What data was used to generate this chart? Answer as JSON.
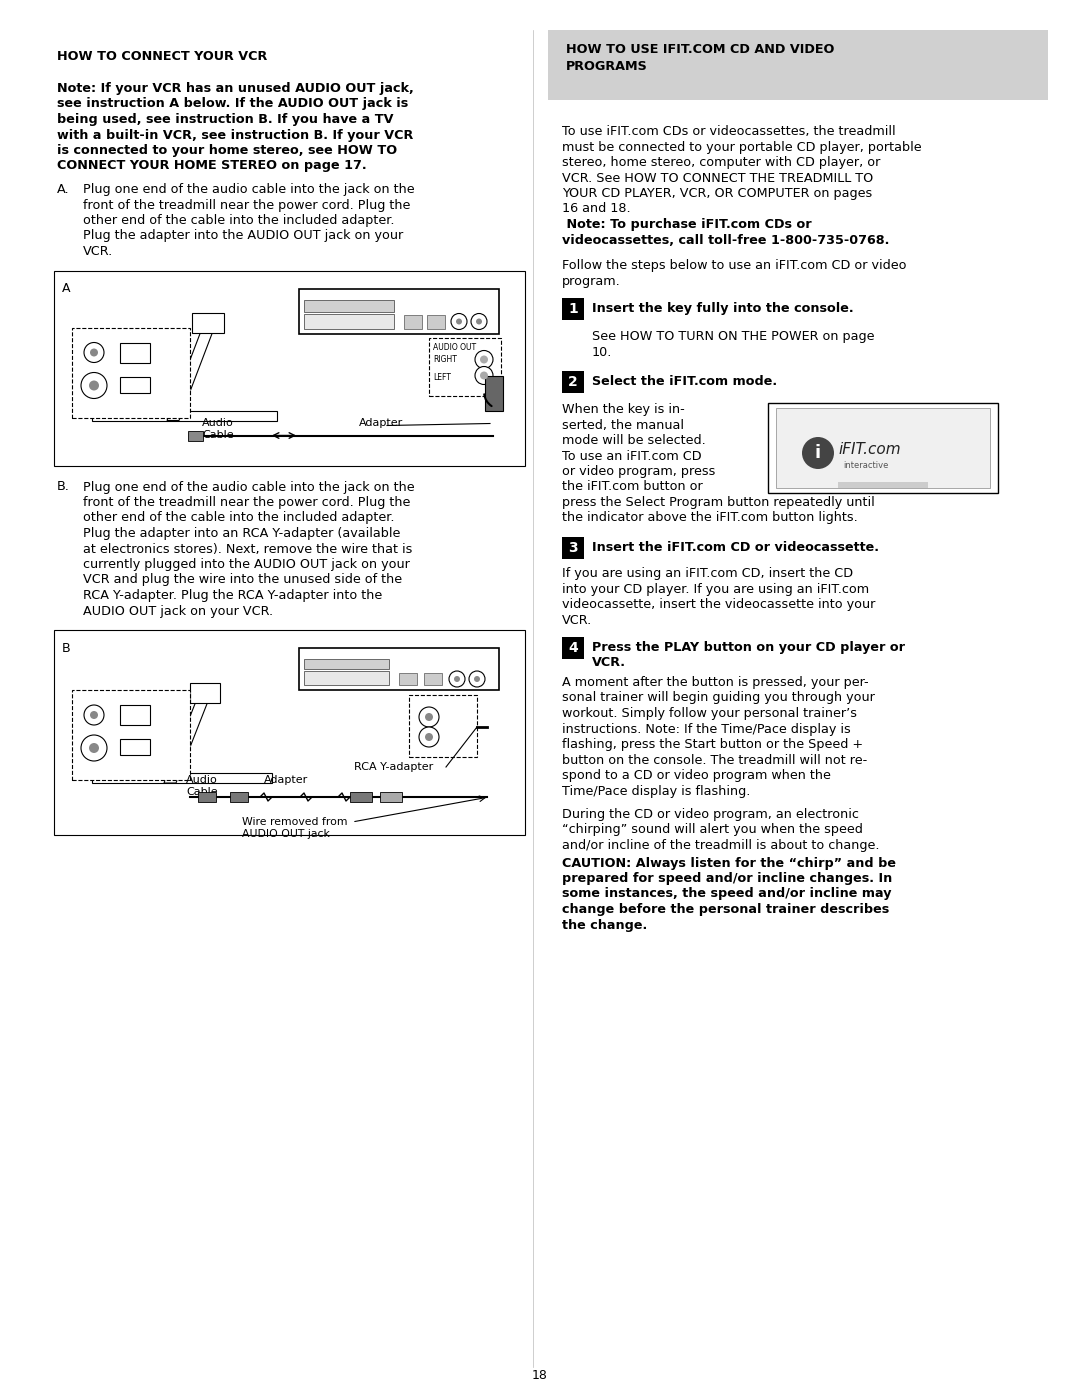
{
  "page_bg": "#ffffff",
  "page_number": "18",
  "left_col": {
    "title": "HOW TO CONNECT YOUR VCR",
    "note_line1": "Note: If your VCR has an unused AUDIO OUT jack,",
    "note_line2": "see instruction A below. If the AUDIO OUT jack is",
    "note_line3": "being used, see instruction B. If you have a TV",
    "note_line4": "with a built-in VCR, see instruction B. If your VCR",
    "note_line5": "is connected to your home stereo, see HOW TO",
    "note_line6": "CONNECT YOUR HOME STEREO on page 17.",
    "instr_a_label": "A.",
    "instr_a_lines": [
      "Plug one end of the audio cable into the jack on the",
      "front of the treadmill near the power cord. Plug the",
      "other end of the cable into the included adapter.",
      "Plug the adapter into the AUDIO OUT jack on your",
      "VCR."
    ],
    "diag_a_label": "A",
    "diag_a_audio_cable": "Audio\nCable",
    "diag_a_adapter": "Adapter",
    "diag_a_audio_out": "AUDIO OUT",
    "diag_a_right": "RIGHT",
    "diag_a_left": "LEFT",
    "instr_b_label": "B.",
    "instr_b_lines": [
      "Plug one end of the audio cable into the jack on the",
      "front of the treadmill near the power cord. Plug the",
      "other end of the cable into the included adapter.",
      "Plug the adapter into an RCA Y-adapter (available",
      "at electronics stores). Next, remove the wire that is",
      "currently plugged into the AUDIO OUT jack on your",
      "VCR and plug the wire into the unused side of the",
      "RCA Y-adapter. Plug the RCA Y-adapter into the",
      "AUDIO OUT jack on your VCR."
    ],
    "diag_b_label": "B",
    "diag_b_rca": "RCA Y-adapter",
    "diag_b_audio_cable": "Audio\nCable",
    "diag_b_adapter": "Adapter",
    "diag_b_wire": "Wire removed from\nAUDIO OUT jack"
  },
  "right_col": {
    "header_bg": "#d0d0d0",
    "header_line1": "HOW TO USE IFIT.COM CD AND VIDEO",
    "header_line2": "PROGRAMS",
    "intro_lines": [
      "To use iFIT.com CDs or videocassettes, the treadmill",
      "must be connected to your portable CD player, portable",
      "stereo, home stereo, computer with CD player, or",
      "VCR. See HOW TO CONNECT THE TREADMILL TO",
      "YOUR CD PLAYER, VCR, OR COMPUTER on pages",
      "16 and 18."
    ],
    "intro_bold": " Note: To purchase iFIT.com CDs or",
    "intro_bold2": "videocassettes, call toll-free 1-800-735-0768.",
    "follow_line1": "Follow the steps below to use an iFIT.com CD or video",
    "follow_line2": "program.",
    "step1_num": "1",
    "step1_bold": "Insert the key fully into the console.",
    "step1_line1": "See HOW TO TURN ON THE POWER on page",
    "step1_line2": "10.",
    "step2_num": "2",
    "step2_bold": "Select the iFIT.com mode.",
    "step2_text": [
      "When the key is in-",
      "serted, the manual",
      "mode will be selected.",
      "To use an iFIT.com CD",
      "or video program, press",
      "the iFIT.com button or",
      "press the Select Program button repeatedly until",
      "the indicator above the iFIT.com button lights."
    ],
    "step3_num": "3",
    "step3_bold": "Insert the iFIT.com CD or videocassette.",
    "step3_text": [
      "If you are using an iFIT.com CD, insert the CD",
      "into your CD player. If you are using an iFIT.com",
      "videocassette, insert the videocassette into your",
      "VCR."
    ],
    "step4_num": "4",
    "step4_bold_line1": "Press the PLAY button on your CD player or",
    "step4_bold_line2": "VCR.",
    "step4_text": [
      "A moment after the button is pressed, your per-",
      "sonal trainer will begin guiding you through your",
      "workout. Simply follow your personal trainer’s",
      "instructions. Note: If the Time/Pace display is",
      "flashing, press the Start button or the Speed +",
      "button on the console. The treadmill will not re-",
      "spond to a CD or video program when the",
      "Time/Pace display is flashing."
    ],
    "caution_text": [
      "During the CD or video program, an electronic",
      "“chirping” sound will alert you when the speed",
      "and/or incline of the treadmill is about to change."
    ],
    "caution_bold": [
      "CAUTION: Always listen for the “chirp” and be",
      "prepared for speed and/or incline changes. In",
      "some instances, the speed and/or incline may",
      "change before the personal trainer describes",
      "the change."
    ]
  }
}
